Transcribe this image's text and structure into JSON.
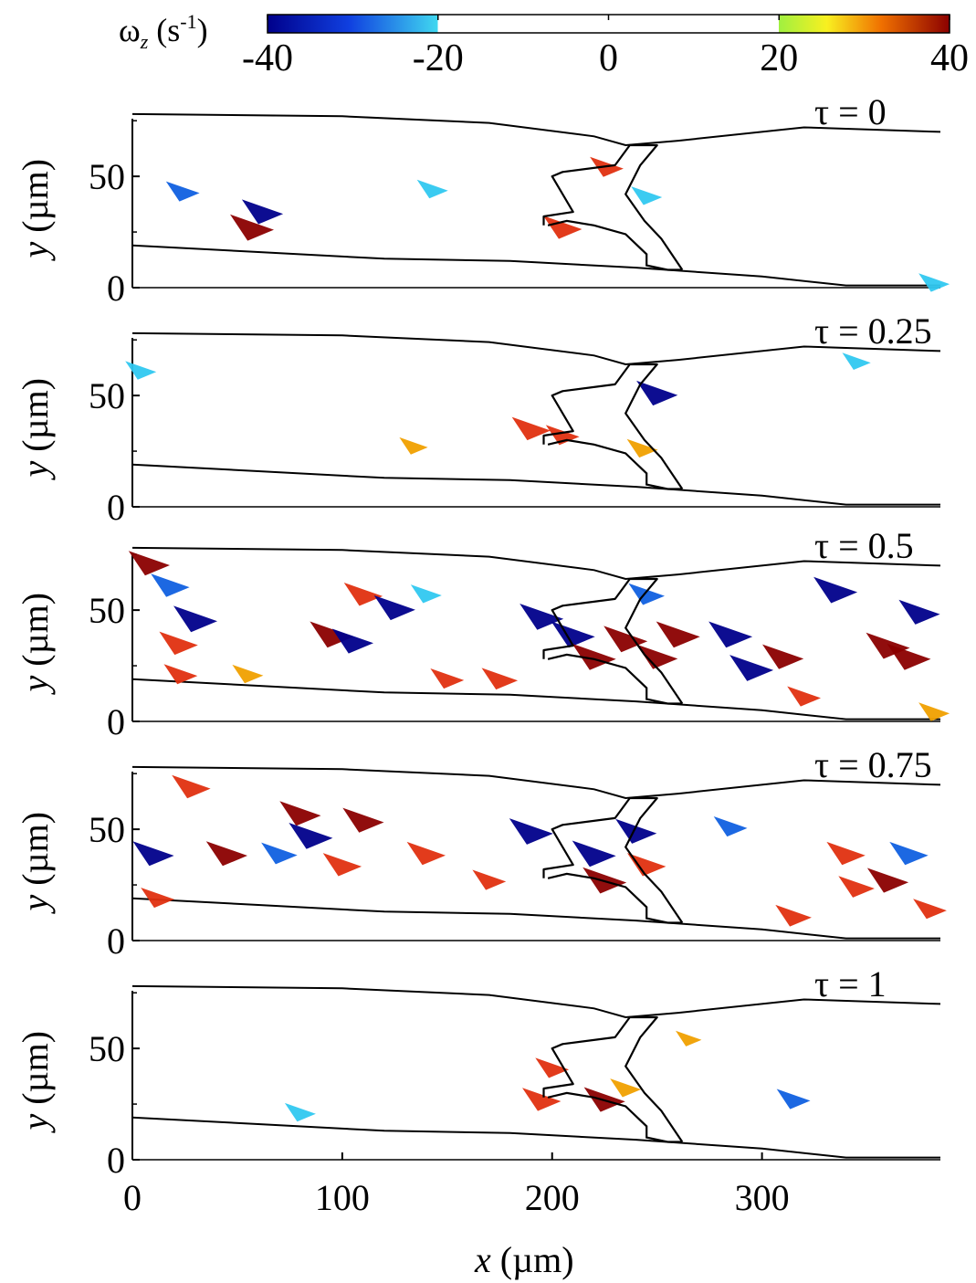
{
  "colorbar": {
    "title": "ωz (s-1)",
    "title_symbol": "ω",
    "title_subscript": "z",
    "title_unit": " (s",
    "title_exponent": "-1",
    "title_close": ")",
    "tick_labels": [
      "-40",
      "-20",
      "0",
      "20",
      "40"
    ],
    "ticks": [
      -40,
      -20,
      0,
      20,
      40
    ],
    "range": [
      -40,
      40
    ],
    "white_band": [
      -20,
      20
    ],
    "colors": {
      "neg_strong": "#00008b",
      "neg_mid": "#1060e0",
      "neg_weak": "#40d0f0",
      "pos_weak": "#f0f020",
      "pos_mid": "#f08000",
      "pos_strong": "#8b0000"
    }
  },
  "axes": {
    "xlabel_symbol": "x",
    "xlabel_unit": " (µm)",
    "ylabel_symbol": "y",
    "ylabel_unit": " (µm)",
    "x_tick_labels": [
      "0",
      "100",
      "200",
      "300"
    ],
    "y_tick_labels": [
      "0",
      "50"
    ]
  },
  "chart_data": {
    "type": "heatmap",
    "quantity": "vorticity ωz",
    "unit": "s-1",
    "xlim": [
      0,
      385
    ],
    "ylim": [
      0,
      80
    ],
    "x_ticks": [
      0,
      100,
      200,
      300
    ],
    "y_ticks": [
      0,
      50
    ],
    "color_range": [
      -40,
      40
    ],
    "panels": [
      {
        "label": "τ = 0",
        "tau": 0,
        "blobs": [
          {
            "x": 62,
            "y": 35,
            "w": 0.9
          },
          {
            "x": 57,
            "y": 28,
            "w": -1.0
          },
          {
            "x": 24,
            "y": 44,
            "w": 0.6
          },
          {
            "x": 143,
            "y": 45,
            "w": 0.5
          },
          {
            "x": 205,
            "y": 28,
            "w": -0.8
          },
          {
            "x": 226,
            "y": 55,
            "w": -0.6
          },
          {
            "x": 245,
            "y": 42,
            "w": 0.5
          },
          {
            "x": 382,
            "y": 3,
            "w": 0.5
          }
        ]
      },
      {
        "label": "τ = 0.25",
        "tau": 0.25,
        "blobs": [
          {
            "x": 250,
            "y": 52,
            "w": 0.9
          },
          {
            "x": 190,
            "y": 36,
            "w": -0.8
          },
          {
            "x": 205,
            "y": 33,
            "w": -0.6
          },
          {
            "x": 134,
            "y": 28,
            "w": -0.4
          },
          {
            "x": 243,
            "y": 27,
            "w": -0.5
          },
          {
            "x": 4,
            "y": 62,
            "w": 0.5
          },
          {
            "x": 345,
            "y": 66,
            "w": 0.4
          }
        ]
      },
      {
        "label": "τ = 0.5",
        "tau": 0.5,
        "blobs": [
          {
            "x": 8,
            "y": 72,
            "w": -0.9
          },
          {
            "x": 18,
            "y": 62,
            "w": 0.8
          },
          {
            "x": 30,
            "y": 47,
            "w": 1.0
          },
          {
            "x": 22,
            "y": 36,
            "w": -0.8
          },
          {
            "x": 23,
            "y": 22,
            "w": -0.6
          },
          {
            "x": 55,
            "y": 22,
            "w": -0.5
          },
          {
            "x": 95,
            "y": 40,
            "w": -1.0
          },
          {
            "x": 105,
            "y": 37,
            "w": 0.9
          },
          {
            "x": 110,
            "y": 58,
            "w": -0.8
          },
          {
            "x": 125,
            "y": 52,
            "w": 0.9
          },
          {
            "x": 140,
            "y": 58,
            "w": 0.5
          },
          {
            "x": 150,
            "y": 20,
            "w": -0.6
          },
          {
            "x": 175,
            "y": 20,
            "w": -0.7
          },
          {
            "x": 195,
            "y": 48,
            "w": 1.0
          },
          {
            "x": 210,
            "y": 40,
            "w": 1.0
          },
          {
            "x": 220,
            "y": 30,
            "w": -1.0
          },
          {
            "x": 235,
            "y": 38,
            "w": -1.0
          },
          {
            "x": 245,
            "y": 58,
            "w": 0.7
          },
          {
            "x": 250,
            "y": 30,
            "w": -0.9
          },
          {
            "x": 260,
            "y": 40,
            "w": -1.0
          },
          {
            "x": 285,
            "y": 40,
            "w": 1.0
          },
          {
            "x": 295,
            "y": 25,
            "w": 1.0
          },
          {
            "x": 310,
            "y": 30,
            "w": -0.9
          },
          {
            "x": 320,
            "y": 12,
            "w": -0.6
          },
          {
            "x": 335,
            "y": 60,
            "w": 1.0
          },
          {
            "x": 360,
            "y": 35,
            "w": -1.0
          },
          {
            "x": 370,
            "y": 30,
            "w": -1.0
          },
          {
            "x": 375,
            "y": 50,
            "w": 0.9
          },
          {
            "x": 382,
            "y": 5,
            "w": -0.5
          }
        ]
      },
      {
        "label": "τ = 0.75",
        "tau": 0.75,
        "blobs": [
          {
            "x": 28,
            "y": 70,
            "w": -0.8
          },
          {
            "x": 10,
            "y": 40,
            "w": 0.9
          },
          {
            "x": 12,
            "y": 20,
            "w": -0.6
          },
          {
            "x": 45,
            "y": 40,
            "w": -0.9
          },
          {
            "x": 70,
            "y": 40,
            "w": 0.7
          },
          {
            "x": 80,
            "y": 58,
            "w": -0.9
          },
          {
            "x": 85,
            "y": 48,
            "w": 1.0
          },
          {
            "x": 100,
            "y": 35,
            "w": -0.8
          },
          {
            "x": 110,
            "y": 55,
            "w": -0.9
          },
          {
            "x": 140,
            "y": 40,
            "w": -0.8
          },
          {
            "x": 170,
            "y": 28,
            "w": -0.6
          },
          {
            "x": 190,
            "y": 50,
            "w": 1.0
          },
          {
            "x": 220,
            "y": 40,
            "w": 1.0
          },
          {
            "x": 225,
            "y": 28,
            "w": -1.0
          },
          {
            "x": 240,
            "y": 50,
            "w": 0.9
          },
          {
            "x": 245,
            "y": 35,
            "w": -0.8
          },
          {
            "x": 285,
            "y": 52,
            "w": 0.6
          },
          {
            "x": 315,
            "y": 12,
            "w": -0.7
          },
          {
            "x": 340,
            "y": 40,
            "w": -0.8
          },
          {
            "x": 345,
            "y": 25,
            "w": -0.7
          },
          {
            "x": 360,
            "y": 28,
            "w": -0.9
          },
          {
            "x": 370,
            "y": 40,
            "w": 0.8
          },
          {
            "x": 380,
            "y": 15,
            "w": -0.6
          }
        ]
      },
      {
        "label": "τ = 1",
        "tau": 1,
        "blobs": [
          {
            "x": 200,
            "y": 42,
            "w": -0.6
          },
          {
            "x": 195,
            "y": 28,
            "w": -0.8
          },
          {
            "x": 225,
            "y": 28,
            "w": -0.9
          },
          {
            "x": 235,
            "y": 33,
            "w": -0.5
          },
          {
            "x": 80,
            "y": 22,
            "w": 0.5
          },
          {
            "x": 315,
            "y": 28,
            "w": 0.6
          },
          {
            "x": 265,
            "y": 55,
            "w": -0.3
          }
        ]
      }
    ]
  }
}
